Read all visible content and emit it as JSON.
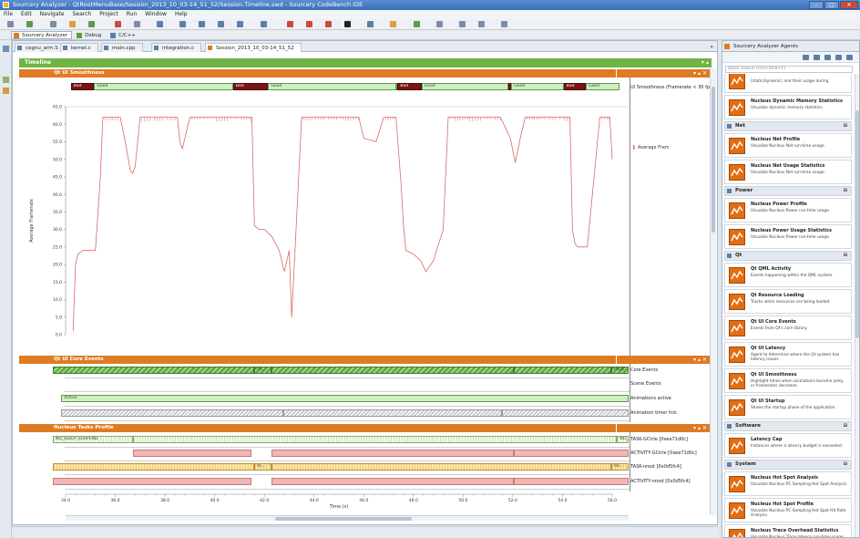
{
  "window": {
    "title": "Sourcery Analyzer - QtRootMenuBase/Session_2013_10_03-14_51_52/Session.Timeline.swd - Sourcery CodeBench IDE"
  },
  "menu": [
    "File",
    "Edit",
    "Navigate",
    "Search",
    "Project",
    "Run",
    "Window",
    "Help"
  ],
  "perspectives": [
    "Sourcery Analyzer",
    "Debug",
    "C/C++"
  ],
  "editor_tabs": [
    "cognu_arm.S",
    "kernel.c",
    "main.cpp",
    "integration.c",
    "Session_2013_10_03-14_51_52"
  ],
  "timeline_title": "Timeline",
  "smoothness": {
    "title": "Qt UI Smoothness",
    "row_label": "UI Smoothness (Framerate < 30 fps)",
    "segments": [
      {
        "kind": "bad",
        "label": "Bad",
        "start": 0.016,
        "end": 0.058
      },
      {
        "kind": "good",
        "label": "Good",
        "start": 0.058,
        "end": 0.307
      },
      {
        "kind": "bad",
        "label": "Bad",
        "start": 0.307,
        "end": 0.37
      },
      {
        "kind": "good",
        "label": "Good",
        "start": 0.37,
        "end": 0.6
      },
      {
        "kind": "bad",
        "label": "",
        "start": 0.6,
        "end": 0.604
      },
      {
        "kind": "good",
        "label": "",
        "start": 0.604,
        "end": 0.6
      },
      {
        "kind": "bad",
        "label": "Bad",
        "start": 0.602,
        "end": 0.645
      },
      {
        "kind": "good",
        "label": "Good",
        "start": 0.645,
        "end": 0.8
      },
      {
        "kind": "bad",
        "label": "",
        "start": 0.8,
        "end": 0.806
      },
      {
        "kind": "good",
        "label": "Good",
        "start": 0.806,
        "end": 0.9
      },
      {
        "kind": "bad",
        "label": "Bad",
        "start": 0.9,
        "end": 0.94
      },
      {
        "kind": "good",
        "label": "Good",
        "start": 0.94,
        "end": 1.0
      }
    ]
  },
  "chart_data": {
    "type": "line",
    "ylabel": "Average Framerate",
    "xlabel": "Time (s)",
    "ylim": [
      0,
      65
    ],
    "yticks": [
      "65.0",
      "60.0",
      "55.0",
      "50.0",
      "45.0",
      "40.0",
      "35.0",
      "30.0",
      "25.0",
      "20.0",
      "15.0",
      "10.0",
      "5.0",
      "0.0"
    ],
    "xlim": [
      34,
      56
    ],
    "xticks": [
      "34.0",
      "36.0",
      "38.0",
      "40.0",
      "42.0",
      "44.0",
      "46.0",
      "48.0",
      "50.0",
      "52.0",
      "54.0",
      "56.0"
    ],
    "series": [
      {
        "name": "Average Framerate",
        "color": "#d86a6a",
        "x": [
          34.3,
          34.4,
          34.5,
          34.7,
          35.0,
          35.2,
          35.4,
          35.5,
          35.8,
          36.2,
          36.4,
          36.6,
          36.7,
          36.8,
          37.0,
          37.5,
          38.0,
          38.5,
          38.6,
          38.7,
          39.0,
          39.5,
          40.0,
          40.6,
          41.0,
          41.2,
          41.4,
          41.5,
          41.6,
          41.8,
          42.0,
          42.3,
          42.6,
          42.8,
          43.0,
          43.1,
          43.5,
          44.0,
          44.5,
          45.0,
          45.1,
          45.2,
          45.4,
          45.6,
          45.8,
          46.0,
          46.5,
          46.8,
          47.0,
          47.2,
          47.3,
          47.5,
          47.6,
          47.7,
          48.0,
          48.3,
          48.5,
          48.8,
          49.2,
          49.4,
          49.6,
          49.8,
          50.0,
          50.2,
          50.4,
          50.8,
          51.2,
          51.5,
          51.9,
          52.1,
          52.3,
          52.5,
          52.8,
          53.0,
          53.4,
          53.8,
          54.0,
          54.3,
          54.4,
          54.5,
          54.6,
          55.0,
          55.5,
          55.8,
          55.9,
          56.0
        ],
        "y": [
          1,
          20,
          23,
          24,
          24,
          24,
          45,
          62,
          62,
          62,
          55,
          47,
          46,
          48,
          62,
          62,
          62,
          62,
          55,
          53,
          62,
          62,
          62,
          62,
          62,
          62,
          62,
          62,
          31,
          30,
          30,
          28,
          24,
          18,
          24,
          5,
          62,
          62,
          62,
          62,
          62,
          62,
          62,
          62,
          62,
          56,
          55,
          62,
          62,
          62,
          62,
          43,
          31,
          24,
          23,
          21,
          18,
          21,
          30,
          62,
          62,
          62,
          62,
          62,
          62,
          62,
          62,
          62,
          56,
          49,
          56,
          62,
          62,
          62,
          62,
          62,
          62,
          62,
          30,
          26,
          25,
          25,
          62,
          62,
          62,
          50
        ]
      }
    ],
    "legend": "right",
    "grid": false
  },
  "core_events": {
    "title": "Qt UI Core Events",
    "rows": [
      {
        "label": "Core Events",
        "segments": [
          {
            "text": "",
            "s": 0.0,
            "e": 0.35
          },
          {
            "text": "Pa...",
            "s": 0.35,
            "e": 0.38
          },
          {
            "text": "",
            "s": 0.38,
            "e": 0.8
          },
          {
            "text": "",
            "s": 0.8,
            "e": 0.97
          },
          {
            "text": "Paint",
            "s": 0.97,
            "e": 1.0
          }
        ]
      },
      {
        "label": "Scene Events",
        "segments": []
      },
      {
        "label": "Animations active",
        "segments": [
          {
            "text": "Active",
            "s": 0.015,
            "e": 1.0
          }
        ]
      },
      {
        "label": "Animation timer tick",
        "segments": [
          {
            "text": "",
            "s": 0.015,
            "e": 0.4
          },
          {
            "text": "",
            "s": 0.4,
            "e": 0.78
          },
          {
            "text": "",
            "s": 0.78,
            "e": 1.0
          }
        ]
      }
    ]
  },
  "tasks": {
    "title": "Nucleus Tasks Profile",
    "rows": [
      {
        "label": "TASK-GCtrle [0xee71d0c]",
        "kind": "stripebar",
        "segments": [
          {
            "text": "NU_SLEEP_SUSPEND",
            "s": 0.0,
            "e": 0.14
          },
          {
            "text": "",
            "s": 0.14,
            "e": 0.98
          },
          {
            "text": "NU_S...",
            "s": 0.98,
            "e": 1.0
          }
        ]
      },
      {
        "label": "ACTIVITY-GCtrle [0xee71d0c]",
        "kind": "pinkbar",
        "segments": [
          {
            "text": "",
            "s": 0.14,
            "e": 0.345
          },
          {
            "text": "",
            "s": 0.38,
            "e": 0.8
          },
          {
            "text": "",
            "s": 0.8,
            "e": 1.0
          }
        ]
      },
      {
        "label": "TASK-nroot [0x0d5fc4]",
        "kind": "goldbar",
        "segments": [
          {
            "text": "",
            "s": 0.0,
            "e": 0.35
          },
          {
            "text": "Ri...",
            "s": 0.35,
            "e": 0.38
          },
          {
            "text": "",
            "s": 0.38,
            "e": 0.97
          },
          {
            "text": "Re...",
            "s": 0.97,
            "e": 1.0
          }
        ]
      },
      {
        "label": "ACTIVITY-nroot [0x0d5fc4]",
        "kind": "pinkbar",
        "segments": [
          {
            "text": "",
            "s": 0.0,
            "e": 0.345
          },
          {
            "text": "",
            "s": 0.38,
            "e": 0.8
          },
          {
            "text": "",
            "s": 0.8,
            "e": 1.0
          }
        ]
      }
    ]
  },
  "agents": {
    "title": "Sourcery Analyzer Agents",
    "search_placeholder": "Quick Search (Ctrl+Shift+F)",
    "items": [
      {
        "type": "item",
        "title": "",
        "desc": "(static/dynamic) and their usage during"
      },
      {
        "type": "item",
        "title": "Nucleus Dynamic Memory Statistics",
        "desc": "Visualize dynamic memory statistics."
      },
      {
        "type": "group",
        "title": "Net"
      },
      {
        "type": "item",
        "title": "Nucleus Net Profile",
        "desc": "Visualize Nucleus Net run-time usage."
      },
      {
        "type": "item",
        "title": "Nucleus Net Usage Statistics",
        "desc": "Visualize Nucleus Net run-time usage."
      },
      {
        "type": "group",
        "title": "Power"
      },
      {
        "type": "item",
        "title": "Nucleus Power Profile",
        "desc": "Visualize Nucleus Power run-time usage."
      },
      {
        "type": "item",
        "title": "Nucleus Power Usage Statistics",
        "desc": "Visualize Nucleus Power run-time usage."
      },
      {
        "type": "group",
        "title": "Qt"
      },
      {
        "type": "item",
        "title": "Qt QML Activity",
        "desc": "Events happening within the QML system."
      },
      {
        "type": "item",
        "title": "Qt Resource Loading",
        "desc": "Tracks when resources are being loaded."
      },
      {
        "type": "item",
        "title": "Qt UI Core Events",
        "desc": "Events from Qt's core library."
      },
      {
        "type": "item",
        "title": "Qt UI Latency",
        "desc": "Agent to determine where the Qt system has latency issues."
      },
      {
        "type": "item",
        "title": "Qt UI Smoothness",
        "desc": "Highlight times when animations become jerky, or framerates decrease."
      },
      {
        "type": "item",
        "title": "Qt UI Startup",
        "desc": "Shows the startup phase of the application."
      },
      {
        "type": "group",
        "title": "Software"
      },
      {
        "type": "item",
        "title": "Latency Cap",
        "desc": "Instances where a latency budget is exceeded."
      },
      {
        "type": "group",
        "title": "System"
      },
      {
        "type": "item",
        "title": "Nucleus Hot Spot Analysis",
        "desc": "Visualize Nucleus PC Sampling Hot Spot Analysis."
      },
      {
        "type": "item",
        "title": "Nucleus Hot Spot Profile",
        "desc": "Visualize Nucleus PC Sampling Hot Spot Hit Rate Analysis."
      },
      {
        "type": "item",
        "title": "Nucleus Trace Overhead Statistics",
        "desc": "Visualize Nucleus Trace latency run-time usage."
      }
    ]
  }
}
